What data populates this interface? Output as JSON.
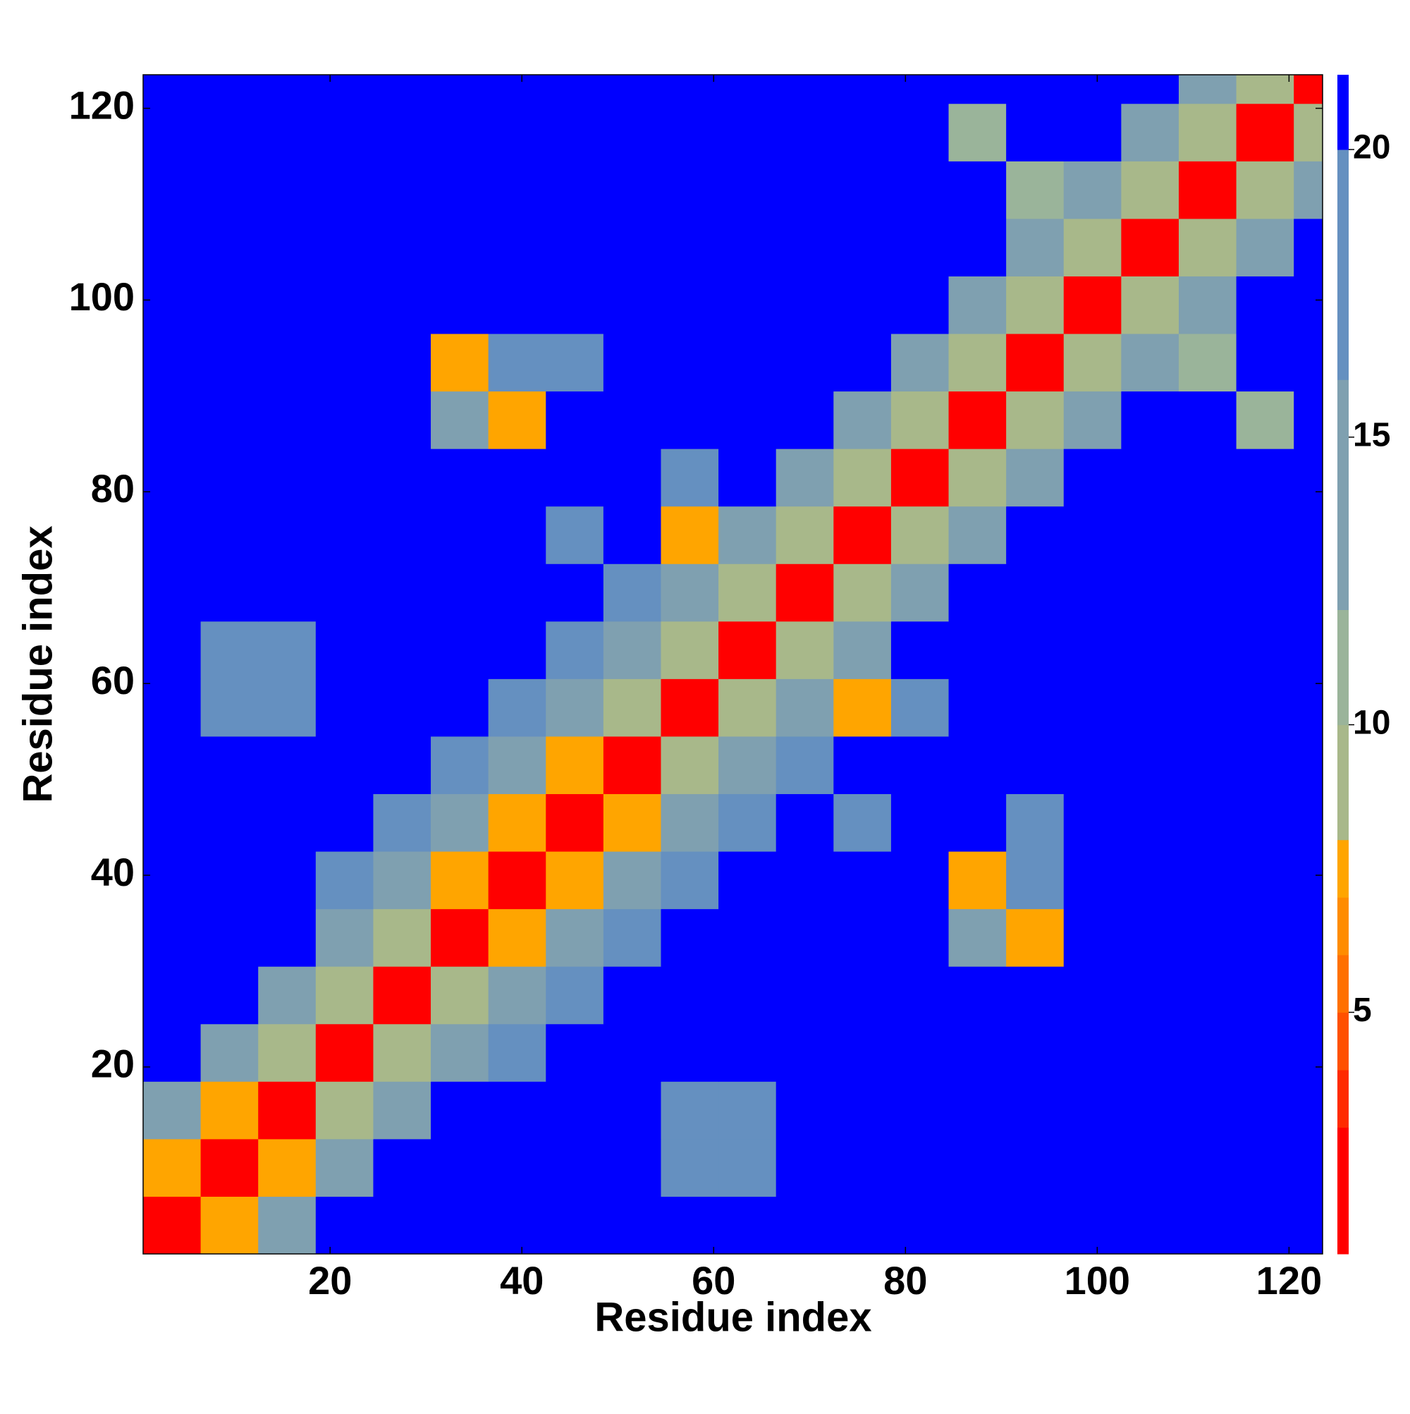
{
  "chart_data": {
    "type": "heatmap",
    "xlabel": "Residue index",
    "ylabel": "Residue index",
    "xbins": [
      0.5,
      6.5,
      12.5,
      18.5,
      24.5,
      30.5,
      36.5,
      42.5,
      48.5,
      54.5,
      60.5,
      66.5,
      72.5,
      78.5,
      84.5,
      90.5,
      96.5,
      102.5,
      108.5,
      114.5,
      120.5,
      123.5
    ],
    "ybins": [
      0.5,
      6.5,
      12.5,
      18.5,
      24.5,
      30.5,
      36.5,
      42.5,
      48.5,
      54.5,
      60.5,
      66.5,
      72.5,
      78.5,
      84.5,
      90.5,
      96.5,
      102.5,
      108.5,
      114.5,
      120.5,
      123.5
    ],
    "z": [
      [
        2.5,
        7,
        14,
        21,
        21,
        21,
        21,
        21,
        21,
        21,
        21,
        21,
        21,
        21,
        21,
        21,
        21,
        21,
        21,
        21,
        21
      ],
      [
        7,
        2.5,
        7,
        14,
        21,
        21,
        21,
        21,
        21,
        17,
        17,
        21,
        21,
        21,
        21,
        21,
        21,
        21,
        21,
        21,
        21
      ],
      [
        14,
        7,
        2.5,
        9,
        14,
        21,
        21,
        21,
        21,
        17,
        17,
        21,
        21,
        21,
        21,
        21,
        21,
        21,
        21,
        21,
        21
      ],
      [
        21,
        14,
        9,
        2.5,
        9,
        14,
        18,
        21,
        21,
        21,
        21,
        21,
        21,
        21,
        21,
        21,
        21,
        21,
        21,
        21,
        21
      ],
      [
        21,
        21,
        14,
        9,
        2.5,
        9,
        14,
        18,
        21,
        21,
        21,
        21,
        21,
        21,
        21,
        21,
        21,
        21,
        21,
        21,
        21
      ],
      [
        21,
        21,
        21,
        14,
        9,
        2.5,
        7,
        14,
        18,
        21,
        21,
        21,
        21,
        21,
        12,
        7,
        21,
        21,
        21,
        21,
        21
      ],
      [
        21,
        21,
        21,
        18,
        14,
        7,
        2.5,
        7,
        14,
        18,
        21,
        21,
        21,
        21,
        7,
        16,
        21,
        21,
        21,
        21,
        21
      ],
      [
        21,
        21,
        21,
        21,
        18,
        14,
        7,
        2.5,
        7,
        14,
        18,
        21,
        17,
        21,
        21,
        16,
        21,
        21,
        21,
        21,
        21
      ],
      [
        21,
        21,
        21,
        21,
        21,
        18,
        14,
        7,
        2.5,
        9,
        14,
        18,
        21,
        21,
        21,
        21,
        21,
        21,
        21,
        21,
        21
      ],
      [
        21,
        17,
        17,
        21,
        21,
        21,
        18,
        14,
        9,
        2.5,
        9,
        14,
        7,
        16,
        21,
        21,
        21,
        21,
        21,
        21,
        21
      ],
      [
        21,
        17,
        17,
        21,
        21,
        21,
        21,
        18,
        14,
        9,
        2.5,
        9,
        14,
        21,
        21,
        21,
        21,
        21,
        21,
        21,
        21
      ],
      [
        21,
        21,
        21,
        21,
        21,
        21,
        21,
        21,
        18,
        14,
        9,
        2.5,
        9,
        14,
        21,
        21,
        21,
        21,
        21,
        21,
        21
      ],
      [
        21,
        21,
        21,
        21,
        21,
        21,
        21,
        17,
        21,
        7,
        14,
        9,
        2.5,
        9,
        14,
        21,
        21,
        21,
        21,
        21,
        21
      ],
      [
        21,
        21,
        21,
        21,
        21,
        21,
        21,
        21,
        21,
        16,
        21,
        14,
        9,
        2.5,
        9,
        14,
        21,
        21,
        21,
        21,
        21
      ],
      [
        21,
        21,
        21,
        21,
        21,
        12,
        7,
        21,
        21,
        21,
        21,
        21,
        14,
        9,
        2.5,
        9,
        14,
        21,
        21,
        11,
        21
      ],
      [
        21,
        21,
        21,
        21,
        21,
        7,
        16,
        16,
        21,
        21,
        21,
        21,
        21,
        14,
        9,
        2.5,
        9,
        14,
        10,
        21,
        21
      ],
      [
        21,
        21,
        21,
        21,
        21,
        21,
        21,
        21,
        21,
        21,
        21,
        21,
        21,
        21,
        14,
        9,
        2.5,
        9,
        14,
        21,
        21
      ],
      [
        21,
        21,
        21,
        21,
        21,
        21,
        21,
        21,
        21,
        21,
        21,
        21,
        21,
        21,
        21,
        14,
        9,
        2.5,
        9,
        14,
        21
      ],
      [
        21,
        21,
        21,
        21,
        21,
        21,
        21,
        21,
        21,
        21,
        21,
        21,
        21,
        21,
        21,
        10,
        14,
        9,
        2.5,
        9,
        14
      ],
      [
        21,
        21,
        21,
        21,
        21,
        21,
        21,
        21,
        21,
        21,
        21,
        21,
        21,
        21,
        11,
        21,
        21,
        14,
        9,
        2.5,
        9
      ],
      [
        21,
        21,
        21,
        21,
        21,
        21,
        21,
        21,
        21,
        21,
        21,
        21,
        21,
        21,
        21,
        21,
        21,
        21,
        14,
        9,
        2.5
      ]
    ],
    "xlim": [
      0.5,
      123.5
    ],
    "ylim": [
      0.5,
      123.5
    ],
    "xticks": [
      20,
      40,
      60,
      80,
      100,
      120
    ],
    "yticks": [
      20,
      40,
      60,
      80,
      100,
      120
    ],
    "clim": [
      0.8,
      21.3
    ],
    "cticks": [
      5,
      10,
      15,
      20
    ],
    "color_levels": [
      0.8,
      3,
      4,
      5,
      6,
      7,
      8,
      10,
      12,
      16,
      20,
      21.3
    ],
    "colors": [
      "#ff0000",
      "#ff2a00",
      "#ff5000",
      "#ff7000",
      "#ff8c00",
      "#ffa500",
      "#a8b88a",
      "#9ab49a",
      "#7fa0b0",
      "#6590c0",
      "#0000ff"
    ]
  }
}
